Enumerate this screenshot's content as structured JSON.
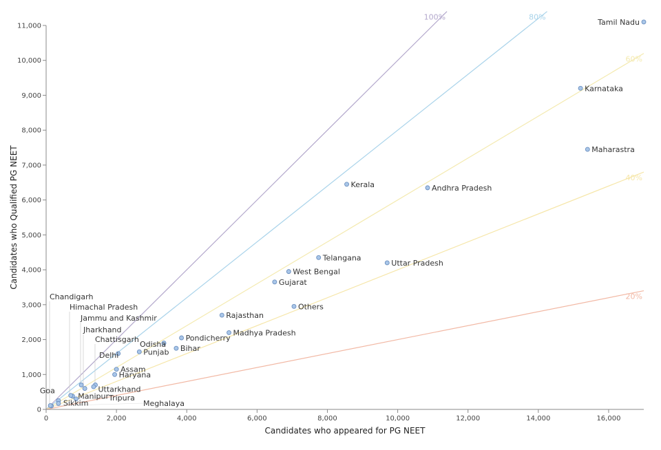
{
  "chart_data": {
    "type": "scatter",
    "title": "",
    "xlabel": "Candidates who appeared for PG NEET",
    "ylabel": "Candidates who Qualified PG NEET",
    "xlim": [
      0,
      17000
    ],
    "ylim": [
      0,
      11000
    ],
    "x_ticks": [
      "0",
      "2,000",
      "4,000",
      "6,000",
      "8,000",
      "10,000",
      "12,000",
      "14,000",
      "16,000"
    ],
    "y_ticks": [
      "0",
      "1,000",
      "2,000",
      "3,000",
      "4,000",
      "5,000",
      "6,000",
      "7,000",
      "8,000",
      "9,000",
      "10,000",
      "11,000"
    ],
    "grid": false,
    "point_color": "#a9c6e8",
    "point_stroke": "#6b8fbf",
    "reference_lines": [
      {
        "label": "100%",
        "ratio": 1.0,
        "color": "#b3a8cc"
      },
      {
        "label": "80%",
        "ratio": 0.8,
        "color": "#a9d3ea"
      },
      {
        "label": "60%",
        "ratio": 0.6,
        "color": "#f4eab0"
      },
      {
        "label": "40%",
        "ratio": 0.4,
        "color": "#f6e6a8"
      },
      {
        "label": "20%",
        "ratio": 0.2,
        "color": "#f2b8a4"
      }
    ],
    "points": [
      {
        "state": "Tamil Nadu",
        "x": 17000,
        "y": 11100
      },
      {
        "state": "Karnataka",
        "x": 15200,
        "y": 9200
      },
      {
        "state": "Maharastra",
        "x": 15400,
        "y": 7450
      },
      {
        "state": "Kerala",
        "x": 8550,
        "y": 6450
      },
      {
        "state": "Andhra Pradesh",
        "x": 10850,
        "y": 6350
      },
      {
        "state": "Telangana",
        "x": 7750,
        "y": 4350
      },
      {
        "state": "Uttar Pradesh",
        "x": 9700,
        "y": 4200
      },
      {
        "state": "West Bengal",
        "x": 6900,
        "y": 3950
      },
      {
        "state": "Gujarat",
        "x": 6500,
        "y": 3650
      },
      {
        "state": "Others",
        "x": 7050,
        "y": 2950
      },
      {
        "state": "Rajasthan",
        "x": 5000,
        "y": 2700
      },
      {
        "state": "Madhya Pradesh",
        "x": 5200,
        "y": 2200
      },
      {
        "state": "Pondicherry",
        "x": 3850,
        "y": 2050
      },
      {
        "state": "Odisha",
        "x": 3350,
        "y": 1900
      },
      {
        "state": "Bihar",
        "x": 3700,
        "y": 1750
      },
      {
        "state": "Punjab",
        "x": 2650,
        "y": 1650
      },
      {
        "state": "Delhi",
        "x": 2050,
        "y": 1600
      },
      {
        "state": "Assam",
        "x": 2000,
        "y": 1150
      },
      {
        "state": "Haryana",
        "x": 1950,
        "y": 1000
      },
      {
        "state": "Uttarkhand",
        "x": 1400,
        "y": 700
      },
      {
        "state": "Manipur",
        "x": 750,
        "y": 380
      },
      {
        "state": "Tripura",
        "x": 850,
        "y": 300
      },
      {
        "state": "Goa",
        "x": 350,
        "y": 250
      },
      {
        "state": "Sikkim",
        "x": 350,
        "y": 170
      },
      {
        "state": "Meghalaya",
        "x": 150,
        "y": 100
      },
      {
        "state": "Chandigarh",
        "x": 120,
        "y": 110
      },
      {
        "state": "Himachal Pradesh",
        "x": 700,
        "y": 400
      },
      {
        "state": "Jammu and Kashmir",
        "x": 1000,
        "y": 700
      },
      {
        "state": "Jharkhand",
        "x": 1100,
        "y": 600
      },
      {
        "state": "Chattisgarh",
        "x": 1350,
        "y": 650
      }
    ]
  }
}
